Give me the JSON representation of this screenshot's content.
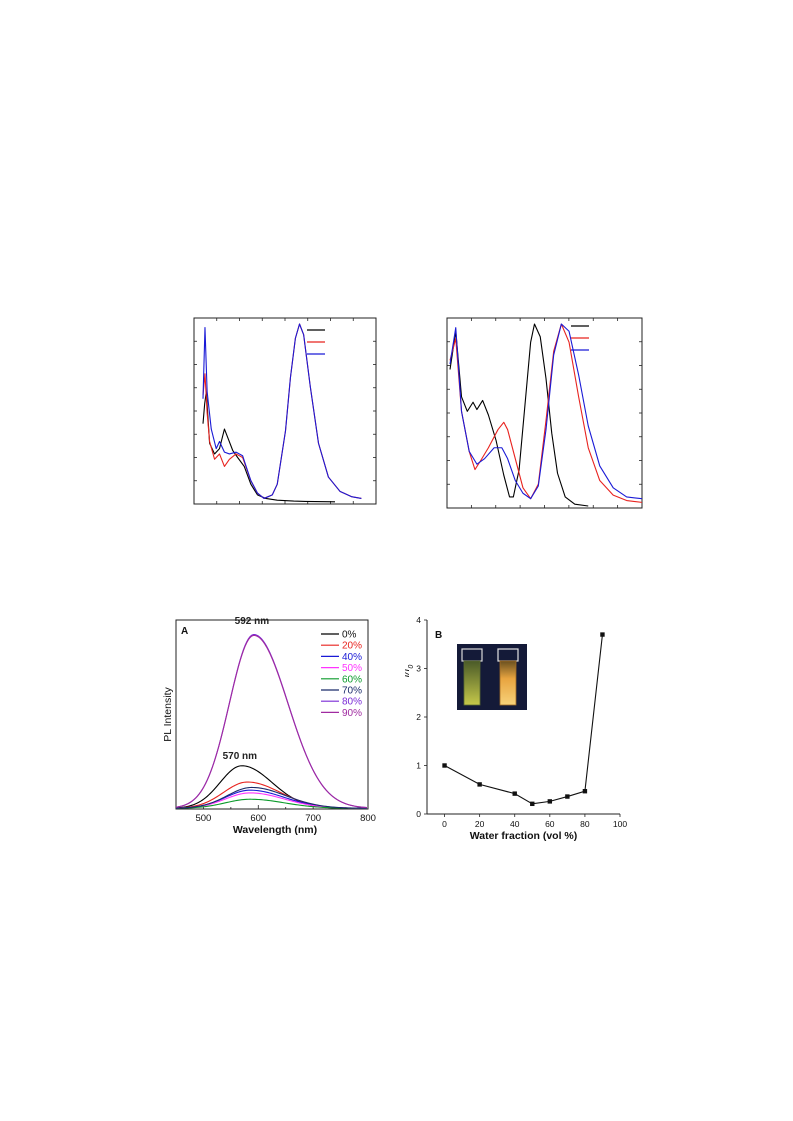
{
  "chart_data": [
    {
      "type": "line",
      "panel": "top-left",
      "x_ticks_labels": "none",
      "legend": {
        "placement": "top-right",
        "entries": 3,
        "colors": [
          "#000000",
          "#e8231f",
          "#1a1ad6"
        ]
      },
      "series": [
        {
          "color": "#000000",
          "points": [
            [
              0,
              0.44
            ],
            [
              0.01,
              0.55
            ],
            [
              0.02,
              0.62
            ],
            [
              0.04,
              0.33
            ],
            [
              0.07,
              0.27
            ],
            [
              0.1,
              0.3
            ],
            [
              0.13,
              0.41
            ],
            [
              0.155,
              0.35
            ],
            [
              0.18,
              0.29
            ],
            [
              0.21,
              0.25
            ],
            [
              0.25,
              0.2
            ],
            [
              0.29,
              0.1
            ],
            [
              0.33,
              0.04
            ],
            [
              0.38,
              0.02
            ],
            [
              0.45,
              0.01
            ],
            [
              0.55,
              0.005
            ],
            [
              0.62,
              0.003
            ],
            [
              0.8,
              0.001
            ]
          ]
        },
        {
          "color": "#e8231f",
          "points": [
            [
              0,
              0.6
            ],
            [
              0.012,
              0.72
            ],
            [
              0.025,
              0.5
            ],
            [
              0.04,
              0.34
            ],
            [
              0.07,
              0.24
            ],
            [
              0.1,
              0.27
            ],
            [
              0.13,
              0.2
            ],
            [
              0.16,
              0.24
            ],
            [
              0.2,
              0.27
            ],
            [
              0.24,
              0.25
            ],
            [
              0.29,
              0.12
            ],
            [
              0.33,
              0.05
            ],
            [
              0.37,
              0.02
            ],
            [
              0.42,
              0.04
            ],
            [
              0.45,
              0.1
            ],
            [
              0.5,
              0.4
            ],
            [
              0.53,
              0.7
            ],
            [
              0.56,
              0.92
            ],
            [
              0.585,
              1.0
            ],
            [
              0.61,
              0.94
            ],
            [
              0.65,
              0.65
            ],
            [
              0.7,
              0.33
            ],
            [
              0.76,
              0.14
            ],
            [
              0.83,
              0.06
            ],
            [
              0.9,
              0.03
            ],
            [
              0.96,
              0.02
            ]
          ]
        },
        {
          "color": "#1a1ad6",
          "points": [
            [
              0,
              0.58
            ],
            [
              0.012,
              0.98
            ],
            [
              0.025,
              0.62
            ],
            [
              0.05,
              0.41
            ],
            [
              0.08,
              0.3
            ],
            [
              0.1,
              0.34
            ],
            [
              0.13,
              0.28
            ],
            [
              0.16,
              0.27
            ],
            [
              0.2,
              0.28
            ],
            [
              0.24,
              0.26
            ],
            [
              0.29,
              0.12
            ],
            [
              0.33,
              0.05
            ],
            [
              0.37,
              0.02
            ],
            [
              0.42,
              0.04
            ],
            [
              0.45,
              0.1
            ],
            [
              0.5,
              0.4
            ],
            [
              0.53,
              0.7
            ],
            [
              0.56,
              0.92
            ],
            [
              0.585,
              1.0
            ],
            [
              0.61,
              0.94
            ],
            [
              0.65,
              0.65
            ],
            [
              0.7,
              0.33
            ],
            [
              0.76,
              0.14
            ],
            [
              0.83,
              0.06
            ],
            [
              0.9,
              0.03
            ],
            [
              0.96,
              0.02
            ]
          ]
        }
      ]
    },
    {
      "type": "line",
      "panel": "top-right",
      "x_ticks_labels": "none",
      "legend": {
        "placement": "top-right",
        "entries": 3,
        "colors": [
          "#000000",
          "#e8231f",
          "#1a1ad6"
        ]
      },
      "series": [
        {
          "color": "#000000",
          "points": [
            [
              0,
              0.75
            ],
            [
              0.03,
              0.96
            ],
            [
              0.06,
              0.6
            ],
            [
              0.09,
              0.52
            ],
            [
              0.12,
              0.57
            ],
            [
              0.14,
              0.53
            ],
            [
              0.17,
              0.58
            ],
            [
              0.2,
              0.5
            ],
            [
              0.24,
              0.36
            ],
            [
              0.28,
              0.17
            ],
            [
              0.31,
              0.05
            ],
            [
              0.33,
              0.05
            ],
            [
              0.36,
              0.2
            ],
            [
              0.39,
              0.55
            ],
            [
              0.42,
              0.9
            ],
            [
              0.44,
              1.0
            ],
            [
              0.47,
              0.93
            ],
            [
              0.5,
              0.7
            ],
            [
              0.53,
              0.4
            ],
            [
              0.56,
              0.18
            ],
            [
              0.6,
              0.05
            ],
            [
              0.65,
              0.01
            ],
            [
              0.72,
              0.0
            ]
          ]
        },
        {
          "color": "#e8231f",
          "points": [
            [
              0,
              0.8
            ],
            [
              0.03,
              0.92
            ],
            [
              0.06,
              0.52
            ],
            [
              0.1,
              0.3
            ],
            [
              0.13,
              0.2
            ],
            [
              0.16,
              0.25
            ],
            [
              0.2,
              0.32
            ],
            [
              0.25,
              0.42
            ],
            [
              0.28,
              0.46
            ],
            [
              0.3,
              0.42
            ],
            [
              0.34,
              0.26
            ],
            [
              0.38,
              0.1
            ],
            [
              0.42,
              0.04
            ],
            [
              0.46,
              0.12
            ],
            [
              0.5,
              0.47
            ],
            [
              0.54,
              0.85
            ],
            [
              0.58,
              1.0
            ],
            [
              0.62,
              0.9
            ],
            [
              0.67,
              0.6
            ],
            [
              0.72,
              0.32
            ],
            [
              0.78,
              0.14
            ],
            [
              0.85,
              0.06
            ],
            [
              0.92,
              0.03
            ],
            [
              1,
              0.02
            ]
          ]
        },
        {
          "color": "#1a1ad6",
          "points": [
            [
              0,
              0.78
            ],
            [
              0.03,
              0.98
            ],
            [
              0.06,
              0.52
            ],
            [
              0.1,
              0.3
            ],
            [
              0.14,
              0.23
            ],
            [
              0.18,
              0.26
            ],
            [
              0.23,
              0.32
            ],
            [
              0.27,
              0.32
            ],
            [
              0.3,
              0.26
            ],
            [
              0.34,
              0.14
            ],
            [
              0.38,
              0.07
            ],
            [
              0.42,
              0.04
            ],
            [
              0.46,
              0.11
            ],
            [
              0.5,
              0.42
            ],
            [
              0.54,
              0.83
            ],
            [
              0.58,
              1.0
            ],
            [
              0.62,
              0.96
            ],
            [
              0.67,
              0.72
            ],
            [
              0.72,
              0.44
            ],
            [
              0.78,
              0.22
            ],
            [
              0.85,
              0.1
            ],
            [
              0.92,
              0.05
            ],
            [
              1,
              0.04
            ]
          ]
        }
      ]
    },
    {
      "type": "line",
      "panel": "A",
      "panel_label": "A",
      "xlabel": "Wavelength (nm)",
      "ylabel": "PL Intensity",
      "xlim": [
        450,
        800
      ],
      "ylim": [
        0,
        1.0
      ],
      "x_ticks": [
        500,
        600,
        700,
        800
      ],
      "annotations": [
        {
          "text": "592 nm",
          "x": 592,
          "y": 1.0
        },
        {
          "text": "570 nm",
          "x": 570,
          "y": 0.255
        }
      ],
      "legend": {
        "placement": "top-right"
      },
      "series": [
        {
          "name": "0%",
          "color": "#000000",
          "peak_x": 570,
          "peak_y": 0.235,
          "width": 55
        },
        {
          "name": "20%",
          "color": "#e8231f",
          "peak_x": 580,
          "peak_y": 0.145,
          "width": 60
        },
        {
          "name": "40%",
          "color": "#1a1ad6",
          "peak_x": 585,
          "peak_y": 0.1,
          "width": 62
        },
        {
          "name": "50%",
          "color": "#ff33ff",
          "peak_x": 585,
          "peak_y": 0.085,
          "width": 62
        },
        {
          "name": "60%",
          "color": "#0a9a2a",
          "peak_x": 585,
          "peak_y": 0.05,
          "width": 62
        },
        {
          "name": "70%",
          "color": "#1a2a6a",
          "peak_x": 588,
          "peak_y": 0.115,
          "width": 62
        },
        {
          "name": "80%",
          "color": "#7a2ad6",
          "peak_x": 592,
          "peak_y": 0.96,
          "width": 62
        },
        {
          "name": "90%",
          "color": "#a02aa0",
          "peak_x": 592,
          "peak_y": 0.955,
          "width": 62
        }
      ]
    },
    {
      "type": "line",
      "panel": "B",
      "panel_label": "B",
      "xlabel": "Water fraction (vol %)",
      "ylabel": "I/I0",
      "xlim": [
        -10,
        100
      ],
      "ylim": [
        0,
        4
      ],
      "x_ticks": [
        0,
        20,
        40,
        60,
        80,
        100
      ],
      "y_ticks": [
        0,
        1,
        2,
        3,
        4
      ],
      "x": [
        0,
        20,
        40,
        50,
        60,
        70,
        80,
        90
      ],
      "values": [
        1.0,
        0.61,
        0.42,
        0.21,
        0.26,
        0.36,
        0.47,
        3.7
      ],
      "inset": "photo of two cuvettes: yellow-green (left) and orange (right) under UV light"
    }
  ]
}
